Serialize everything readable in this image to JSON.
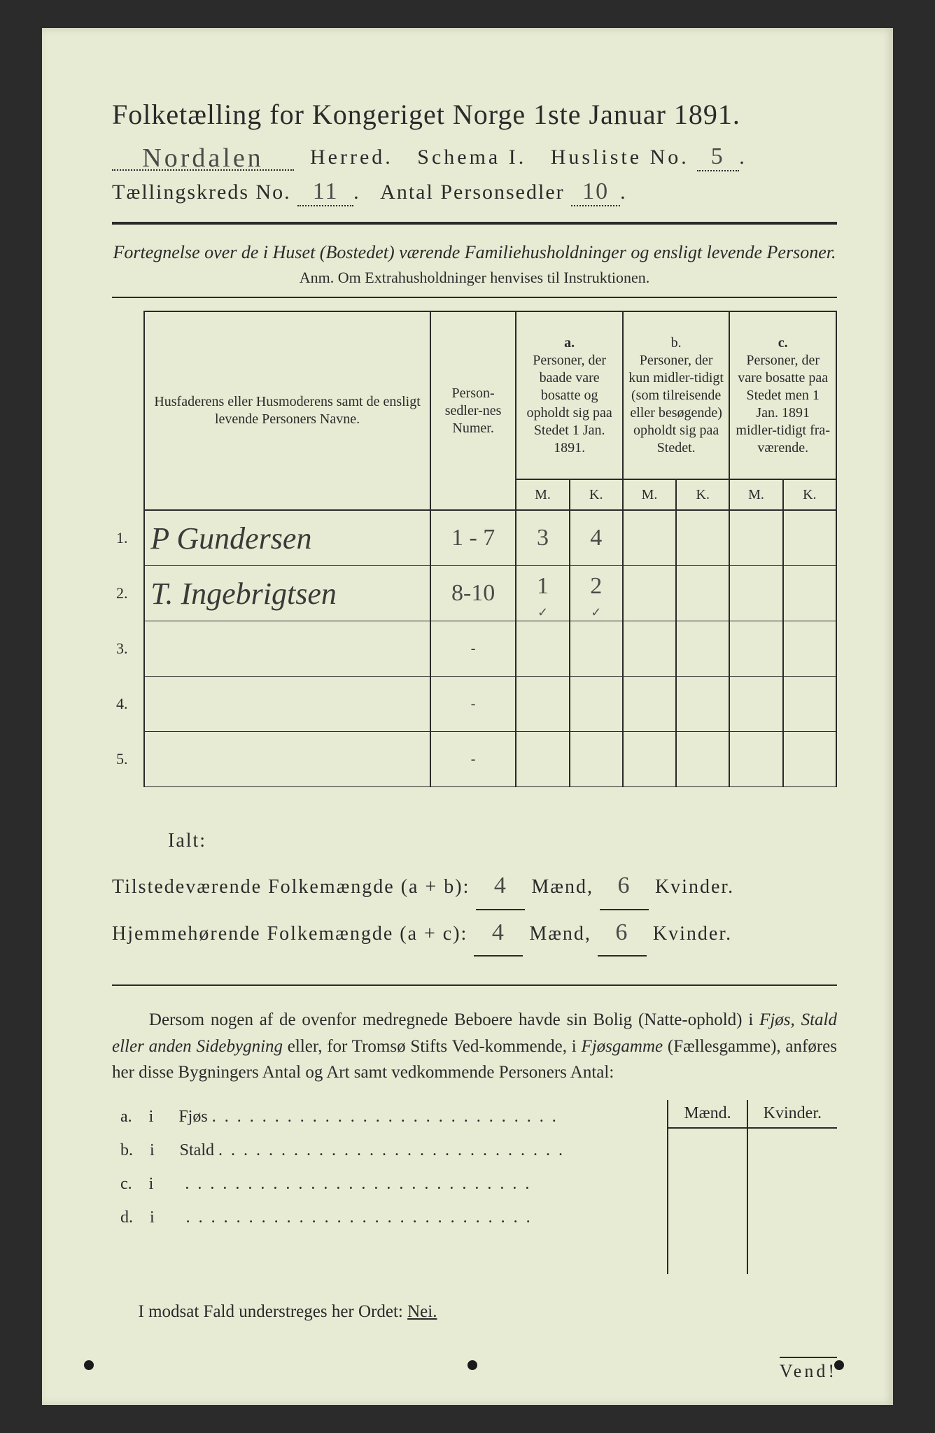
{
  "title": "Folketælling for Kongeriget Norge 1ste Januar 1891.",
  "header": {
    "herred_value": "Nordalen",
    "herred_label": "Herred.",
    "schema_label": "Schema I.",
    "husliste_label": "Husliste No.",
    "husliste_no": "5",
    "kreds_label": "Tællingskreds No.",
    "kreds_no": "11",
    "antal_label": "Antal Personsedler",
    "antal_value": "10"
  },
  "intro": {
    "line": "Fortegnelse over de i Huset (Bostedet) værende Familiehusholdninger og ensligt levende Personer.",
    "anm": "Anm.  Om Extrahusholdninger henvises til Instruktionen."
  },
  "table": {
    "head_name": "Husfaderens eller Husmoderens samt de ensligt levende Personers Navne.",
    "head_num": "Person-sedler-nes Numer.",
    "col_a_label": "a.",
    "col_a_text": "Personer, der baade vare bosatte og opholdt sig paa Stedet 1 Jan. 1891.",
    "col_b_label": "b.",
    "col_b_text": "Personer, der kun midler-tidigt (som tilreisende eller besøgende) opholdt sig paa Stedet.",
    "col_c_label": "c.",
    "col_c_text": "Personer, der vare bosatte paa Stedet men 1 Jan. 1891 midler-tidigt fra-værende.",
    "M": "M.",
    "K": "K.",
    "rows": [
      {
        "n": "1.",
        "name": "P Gundersen",
        "num": "1 - 7",
        "aM": "3",
        "aK": "4",
        "bM": "",
        "bK": "",
        "cM": "",
        "cK": ""
      },
      {
        "n": "2.",
        "name": "T. Ingebrigtsen",
        "num": "8-10",
        "aM": "1",
        "aK": "2",
        "bM": "",
        "bK": "",
        "cM": "",
        "cK": ""
      },
      {
        "n": "3.",
        "name": "",
        "num": "-",
        "aM": "",
        "aK": "",
        "bM": "",
        "bK": "",
        "cM": "",
        "cK": ""
      },
      {
        "n": "4.",
        "name": "",
        "num": "-",
        "aM": "",
        "aK": "",
        "bM": "",
        "bK": "",
        "cM": "",
        "cK": ""
      },
      {
        "n": "5.",
        "name": "",
        "num": "-",
        "aM": "",
        "aK": "",
        "bM": "",
        "bK": "",
        "cM": "",
        "cK": ""
      }
    ],
    "ticks_row2": {
      "aM": "✓",
      "aK": "✓"
    }
  },
  "totals": {
    "ialt": "Ialt:",
    "line1_label": "Tilstedeværende Folkemængde (a + b):",
    "line2_label": "Hjemmehørende Folkemængde (a + c):",
    "maend_label": "Mænd,",
    "kvinder_label": "Kvinder.",
    "line1_m": "4",
    "line1_k": "6",
    "line2_m": "4",
    "line2_k": "6"
  },
  "paragraph": "Dersom nogen af de ovenfor medregnede Beboere havde sin Bolig (Natte-ophold) i Fjøs, Stald eller anden Sidebygning eller, for Tromsø Stifts Ved-kommende, i Fjøsgamme (Fællesgamme), anføres her disse Bygningers Antal og Art samt vedkommende Personers Antal:",
  "side": {
    "maend": "Mænd.",
    "kvinder": "Kvinder.",
    "items": [
      {
        "k": "a.",
        "i": "i",
        "label": "Fjøs"
      },
      {
        "k": "b.",
        "i": "i",
        "label": "Stald"
      },
      {
        "k": "c.",
        "i": "i",
        "label": ""
      },
      {
        "k": "d.",
        "i": "i",
        "label": ""
      }
    ]
  },
  "nei_line": "I modsat Fald understreges her Ordet: ",
  "nei_word": "Nei.",
  "vend": "Vend!"
}
